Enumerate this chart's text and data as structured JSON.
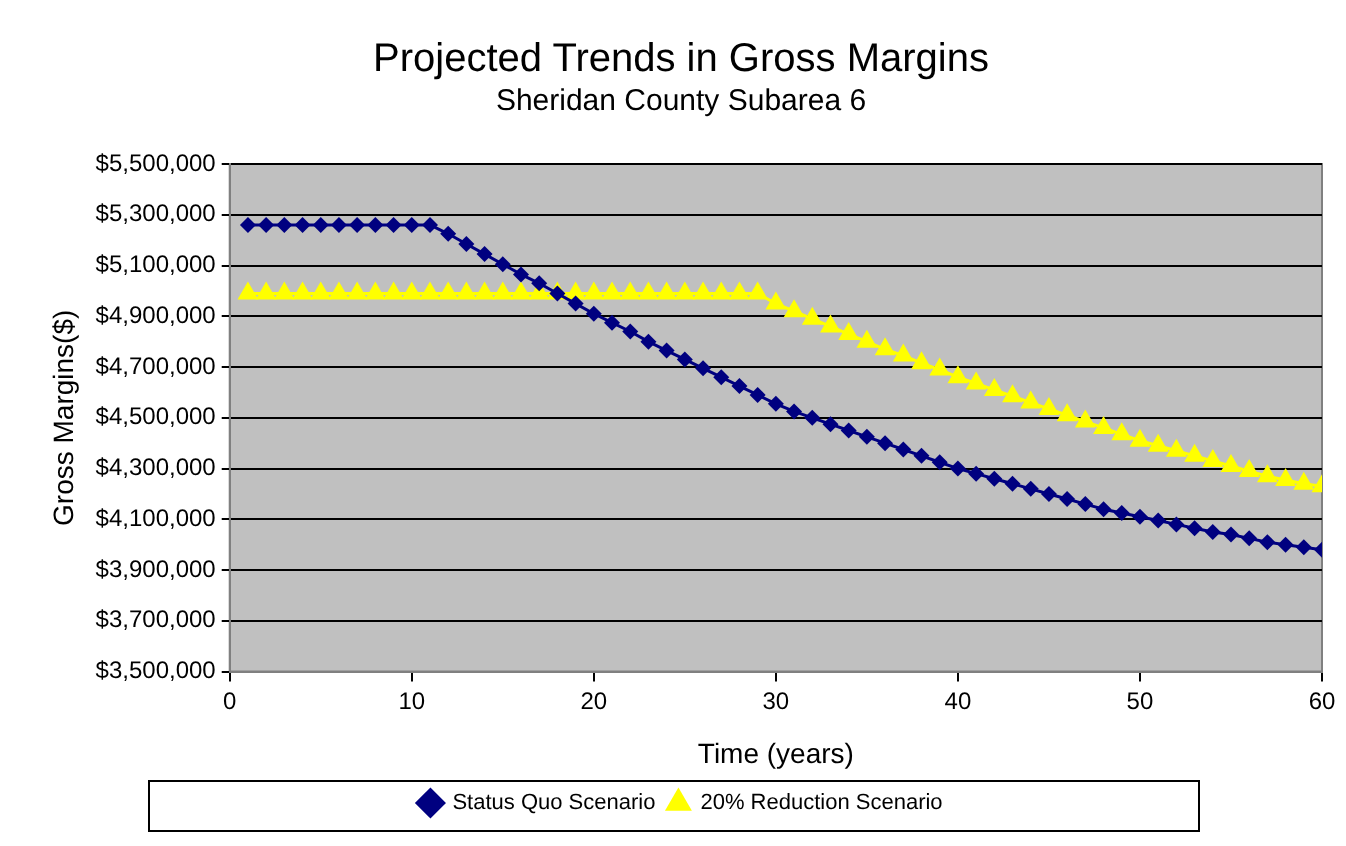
{
  "chart_data": {
    "type": "line",
    "title": "Projected Trends in Gross Margins",
    "subtitle": "Sheridan County Subarea 6",
    "xlabel": "Time (years)",
    "ylabel": "Gross Margins($)",
    "x": [
      1,
      2,
      3,
      4,
      5,
      6,
      7,
      8,
      9,
      10,
      11,
      12,
      13,
      14,
      15,
      16,
      17,
      18,
      19,
      20,
      21,
      22,
      23,
      24,
      25,
      26,
      27,
      28,
      29,
      30,
      31,
      32,
      33,
      34,
      35,
      36,
      37,
      38,
      39,
      40,
      41,
      42,
      43,
      44,
      45,
      46,
      47,
      48,
      49,
      50,
      51,
      52,
      53,
      54,
      55,
      56,
      57,
      58,
      59,
      60
    ],
    "series": [
      {
        "name": "Status Quo Scenario",
        "color": "#000080",
        "marker": "diamond",
        "values": [
          5260000,
          5260000,
          5260000,
          5260000,
          5260000,
          5260000,
          5260000,
          5260000,
          5260000,
          5260000,
          5260000,
          5225000,
          5185000,
          5145000,
          5105000,
          5065000,
          5030000,
          4990000,
          4950000,
          4910000,
          4875000,
          4840000,
          4800000,
          4765000,
          4730000,
          4695000,
          4660000,
          4625000,
          4590000,
          4555000,
          4525000,
          4500000,
          4475000,
          4450000,
          4425000,
          4400000,
          4375000,
          4350000,
          4325000,
          4300000,
          4280000,
          4260000,
          4240000,
          4220000,
          4200000,
          4180000,
          4160000,
          4140000,
          4125000,
          4110000,
          4095000,
          4080000,
          4065000,
          4050000,
          4040000,
          4025000,
          4010000,
          4000000,
          3990000,
          3980000
        ]
      },
      {
        "name": "20% Reduction Scenario",
        "color": "#ffff00",
        "marker": "triangle",
        "values": [
          4990000,
          4990000,
          4990000,
          4990000,
          4990000,
          4990000,
          4990000,
          4990000,
          4990000,
          4990000,
          4990000,
          4990000,
          4990000,
          4990000,
          4990000,
          4990000,
          4990000,
          4990000,
          4990000,
          4990000,
          4990000,
          4990000,
          4990000,
          4990000,
          4990000,
          4990000,
          4990000,
          4990000,
          4990000,
          4950000,
          4920000,
          4890000,
          4860000,
          4830000,
          4800000,
          4770000,
          4745000,
          4715000,
          4690000,
          4660000,
          4635000,
          4610000,
          4585000,
          4560000,
          4535000,
          4510000,
          4485000,
          4460000,
          4435000,
          4410000,
          4390000,
          4370000,
          4350000,
          4330000,
          4310000,
          4290000,
          4270000,
          4255000,
          4240000,
          4230000
        ]
      }
    ],
    "xlim": [
      0,
      60
    ],
    "xticks": [
      0,
      10,
      20,
      30,
      40,
      50,
      60
    ],
    "ylim": [
      3500000,
      5500000
    ],
    "yticks": [
      {
        "value": 3500000,
        "label": "$3,500,000"
      },
      {
        "value": 3700000,
        "label": "$3,700,000"
      },
      {
        "value": 3900000,
        "label": "$3,900,000"
      },
      {
        "value": 4100000,
        "label": "$4,100,000"
      },
      {
        "value": 4300000,
        "label": "$4,300,000"
      },
      {
        "value": 4500000,
        "label": "$4,500,000"
      },
      {
        "value": 4700000,
        "label": "$4,700,000"
      },
      {
        "value": 4900000,
        "label": "$4,900,000"
      },
      {
        "value": 5100000,
        "label": "$5,100,000"
      },
      {
        "value": 5300000,
        "label": "$5,300,000"
      },
      {
        "value": 5500000,
        "label": "$5,500,000"
      }
    ],
    "grid": "y",
    "legend": "bottom",
    "line_style": "solid"
  }
}
